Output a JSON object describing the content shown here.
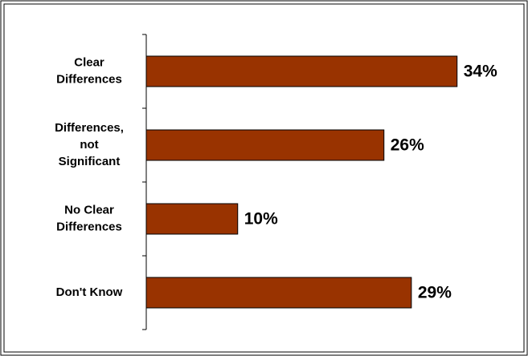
{
  "chart_data": {
    "type": "bar",
    "orientation": "horizontal",
    "title": "",
    "xlabel": "",
    "ylabel": "",
    "categories": [
      [
        "Clear",
        "Differences"
      ],
      [
        "Differences,",
        "not",
        "Significant"
      ],
      [
        "No Clear",
        "Differences"
      ],
      [
        "Don't Know"
      ]
    ],
    "values": [
      34,
      26,
      10,
      29
    ],
    "value_labels": [
      "34%",
      "26%",
      "10%",
      "29%"
    ],
    "xlim": [
      0,
      40
    ],
    "grid": false,
    "legend": "none",
    "bar_color": "#993300",
    "bar_edge_color": "#000000"
  }
}
